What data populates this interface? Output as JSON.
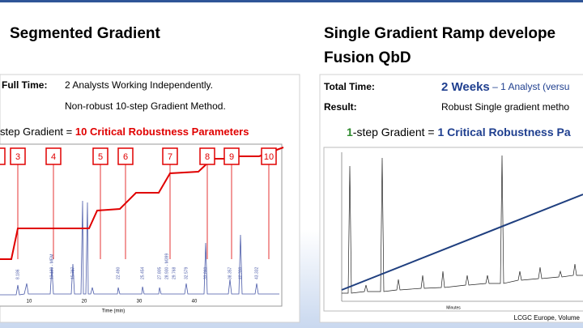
{
  "left": {
    "title": "Segmented Gradient",
    "time_label": "Full Time:",
    "time_value": "2 Analysts Working Independently.",
    "method": "Non-robust 10-step Gradient Method.",
    "step_prefix": "step Gradient = ",
    "step_emph": "10 Critical Robustness Parameters",
    "steps": [
      "3",
      "4",
      "5",
      "6",
      "7",
      "8",
      "9",
      "10"
    ],
    "peak_labels": [
      "8.186",
      "13.189 - MEM",
      "15.797",
      "22.490",
      "25.454",
      "27.805",
      "28.930 - M399",
      "29.768",
      "32.579",
      "33.860",
      "38.357",
      "40.300",
      "43.332"
    ],
    "x_ticks": [
      "10",
      "20",
      "30",
      "40"
    ],
    "x_label": "Time (min)"
  },
  "right": {
    "title_1": "Single Gradient Ramp develope",
    "title_2": "Fusion QbD",
    "time_label": "Total Time:",
    "time_emph": "2 Weeks",
    "time_rest": " – 1 Analyst (versu",
    "result_label": "Result:",
    "result_value": "Robust Single gradient metho",
    "step_num": "1",
    "step_mid": "-step Gradient = ",
    "step_emph": "1 Critical Robustness Pa",
    "x_label": "Minutes",
    "source": "LCGC Europe, Volume"
  }
}
